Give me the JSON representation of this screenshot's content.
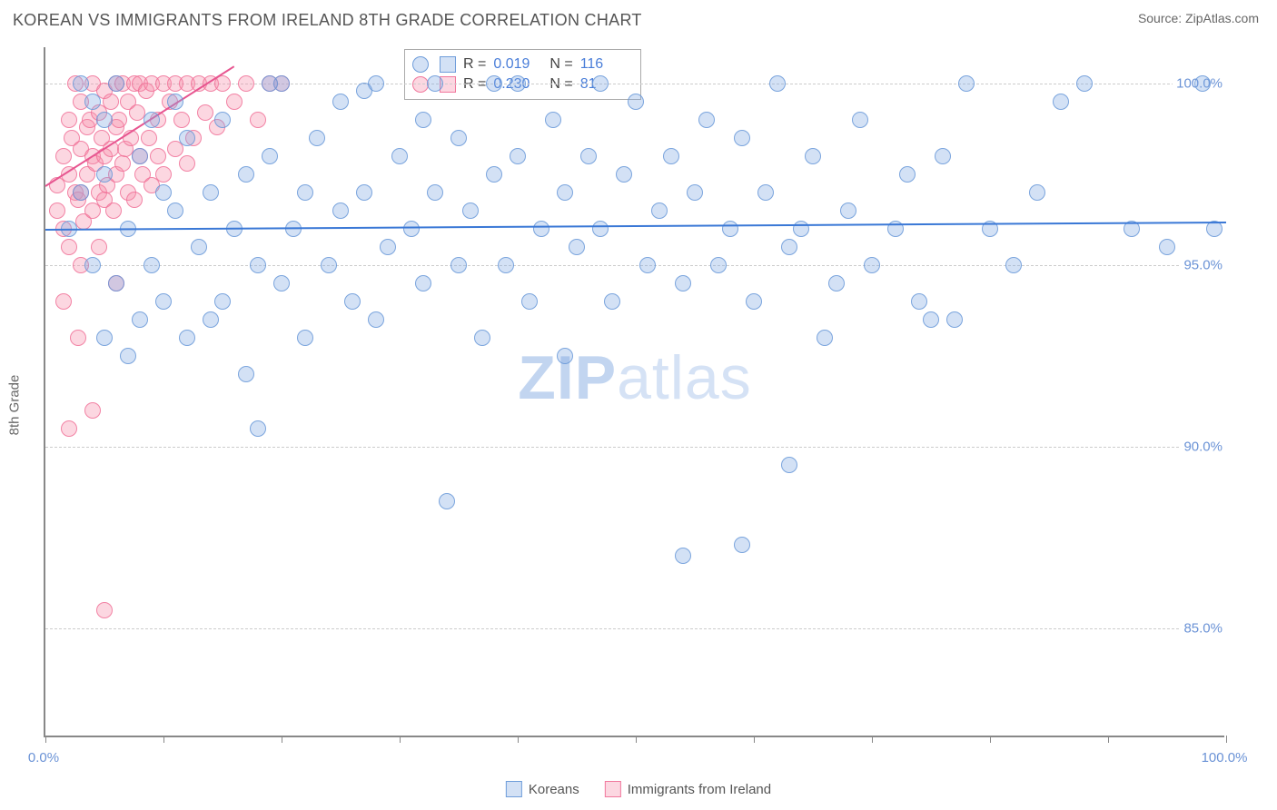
{
  "title": "KOREAN VS IMMIGRANTS FROM IRELAND 8TH GRADE CORRELATION CHART",
  "source_label": "Source: ZipAtlas.com",
  "ylabel": "8th Grade",
  "watermark_a": "ZIP",
  "watermark_b": "atlas",
  "chart": {
    "type": "scatter",
    "xlim": [
      0,
      100
    ],
    "ylim": [
      82,
      101
    ],
    "yticks": [
      85.0,
      90.0,
      95.0,
      100.0
    ],
    "ytick_labels": [
      "85.0%",
      "90.0%",
      "95.0%",
      "100.0%"
    ],
    "xtick_positions": [
      0,
      10,
      20,
      30,
      40,
      50,
      60,
      70,
      80,
      90,
      100
    ],
    "xtick_labels": {
      "0": "0.0%",
      "100": "100.0%"
    },
    "grid_color": "#cccccc",
    "axis_color": "#888888",
    "background_color": "#ffffff",
    "marker_radius": 9,
    "series_blue": {
      "label": "Koreans",
      "fill": "rgba(130,170,225,0.35)",
      "stroke": "rgba(100,150,215,0.8)",
      "R": "0.019",
      "N": "116",
      "trend": {
        "x1": 0,
        "y1": 96.0,
        "x2": 100,
        "y2": 96.2,
        "color": "#3a78d6",
        "width": 2
      },
      "points": [
        [
          2,
          96
        ],
        [
          3,
          97
        ],
        [
          4,
          95
        ],
        [
          4,
          99.5
        ],
        [
          5,
          93
        ],
        [
          5,
          97.5
        ],
        [
          6,
          94.5
        ],
        [
          6,
          100
        ],
        [
          7,
          92.5
        ],
        [
          7,
          96
        ],
        [
          8,
          98
        ],
        [
          8,
          93.5
        ],
        [
          9,
          95
        ],
        [
          9,
          99
        ],
        [
          10,
          94
        ],
        [
          10,
          97
        ],
        [
          11,
          96.5
        ],
        [
          12,
          93
        ],
        [
          12,
          98.5
        ],
        [
          13,
          95.5
        ],
        [
          14,
          97
        ],
        [
          14,
          93.5
        ],
        [
          15,
          99
        ],
        [
          15,
          94
        ],
        [
          16,
          96
        ],
        [
          17,
          97.5
        ],
        [
          17,
          92
        ],
        [
          18,
          95
        ],
        [
          18,
          90.5
        ],
        [
          19,
          98
        ],
        [
          20,
          94.5
        ],
        [
          20,
          100
        ],
        [
          21,
          96
        ],
        [
          22,
          93
        ],
        [
          22,
          97
        ],
        [
          23,
          98.5
        ],
        [
          24,
          95
        ],
        [
          25,
          96.5
        ],
        [
          25,
          99.5
        ],
        [
          26,
          94
        ],
        [
          27,
          97
        ],
        [
          28,
          93.5
        ],
        [
          28,
          100
        ],
        [
          29,
          95.5
        ],
        [
          30,
          98
        ],
        [
          31,
          96
        ],
        [
          32,
          94.5
        ],
        [
          32,
          99
        ],
        [
          33,
          97
        ],
        [
          34,
          88.5
        ],
        [
          35,
          95
        ],
        [
          35,
          98.5
        ],
        [
          36,
          96.5
        ],
        [
          37,
          93
        ],
        [
          38,
          97.5
        ],
        [
          38,
          100
        ],
        [
          39,
          95
        ],
        [
          40,
          98
        ],
        [
          41,
          94
        ],
        [
          42,
          96
        ],
        [
          43,
          99
        ],
        [
          44,
          97
        ],
        [
          44,
          92.5
        ],
        [
          45,
          95.5
        ],
        [
          46,
          98
        ],
        [
          47,
          96
        ],
        [
          47,
          100
        ],
        [
          48,
          94
        ],
        [
          49,
          97.5
        ],
        [
          50,
          99.5
        ],
        [
          51,
          95
        ],
        [
          52,
          96.5
        ],
        [
          53,
          98
        ],
        [
          54,
          94.5
        ],
        [
          54,
          87
        ],
        [
          55,
          97
        ],
        [
          56,
          99
        ],
        [
          57,
          95
        ],
        [
          58,
          96
        ],
        [
          59,
          98.5
        ],
        [
          59,
          87.3
        ],
        [
          60,
          94
        ],
        [
          61,
          97
        ],
        [
          62,
          100
        ],
        [
          63,
          95.5
        ],
        [
          63,
          89.5
        ],
        [
          64,
          96
        ],
        [
          65,
          98
        ],
        [
          66,
          93
        ],
        [
          67,
          94.5
        ],
        [
          68,
          96.5
        ],
        [
          69,
          99
        ],
        [
          70,
          95
        ],
        [
          72,
          96
        ],
        [
          73,
          97.5
        ],
        [
          74,
          94
        ],
        [
          75,
          93.5
        ],
        [
          76,
          98
        ],
        [
          77,
          93.5
        ],
        [
          78,
          100
        ],
        [
          80,
          96
        ],
        [
          82,
          95
        ],
        [
          84,
          97
        ],
        [
          86,
          99.5
        ],
        [
          88,
          100
        ],
        [
          92,
          96
        ],
        [
          95,
          95.5
        ],
        [
          98,
          100
        ],
        [
          99,
          96
        ],
        [
          3,
          100
        ],
        [
          5,
          99
        ],
        [
          11,
          99.5
        ],
        [
          19,
          100
        ],
        [
          27,
          99.8
        ],
        [
          33,
          100
        ],
        [
          40,
          100
        ]
      ]
    },
    "series_pink": {
      "label": "Immigrants from Ireland",
      "fill": "rgba(245,140,170,0.35)",
      "stroke": "rgba(240,110,150,0.8)",
      "R": "0.230",
      "N": "81",
      "trend": {
        "x1": 0,
        "y1": 97.2,
        "x2": 16,
        "y2": 100.5,
        "color": "#e75590",
        "width": 2
      },
      "points": [
        [
          1,
          96.5
        ],
        [
          1,
          97.2
        ],
        [
          1.5,
          98
        ],
        [
          1.5,
          96
        ],
        [
          2,
          97.5
        ],
        [
          2,
          99
        ],
        [
          2,
          95.5
        ],
        [
          2.2,
          98.5
        ],
        [
          2.5,
          97
        ],
        [
          2.5,
          100
        ],
        [
          2.8,
          96.8
        ],
        [
          3,
          98.2
        ],
        [
          3,
          99.5
        ],
        [
          3,
          97
        ],
        [
          3.2,
          96.2
        ],
        [
          3.5,
          98.8
        ],
        [
          3.5,
          97.5
        ],
        [
          3.8,
          99
        ],
        [
          4,
          98
        ],
        [
          4,
          100
        ],
        [
          4,
          96.5
        ],
        [
          4.2,
          97.8
        ],
        [
          4.5,
          99.2
        ],
        [
          4.5,
          97
        ],
        [
          4.8,
          98.5
        ],
        [
          5,
          99.8
        ],
        [
          5,
          96.8
        ],
        [
          5,
          98
        ],
        [
          5.2,
          97.2
        ],
        [
          5.5,
          99.5
        ],
        [
          5.5,
          98.2
        ],
        [
          5.8,
          96.5
        ],
        [
          6,
          100
        ],
        [
          6,
          98.8
        ],
        [
          6,
          97.5
        ],
        [
          6.2,
          99
        ],
        [
          6.5,
          97.8
        ],
        [
          6.5,
          100
        ],
        [
          6.8,
          98.2
        ],
        [
          7,
          99.5
        ],
        [
          7,
          97
        ],
        [
          7.2,
          98.5
        ],
        [
          7.5,
          100
        ],
        [
          7.5,
          96.8
        ],
        [
          7.8,
          99.2
        ],
        [
          8,
          98
        ],
        [
          8,
          100
        ],
        [
          8.2,
          97.5
        ],
        [
          8.5,
          99.8
        ],
        [
          8.8,
          98.5
        ],
        [
          9,
          100
        ],
        [
          9,
          97.2
        ],
        [
          9.5,
          99
        ],
        [
          9.5,
          98
        ],
        [
          10,
          100
        ],
        [
          10,
          97.5
        ],
        [
          10.5,
          99.5
        ],
        [
          11,
          98.2
        ],
        [
          11,
          100
        ],
        [
          11.5,
          99
        ],
        [
          12,
          97.8
        ],
        [
          12,
          100
        ],
        [
          12.5,
          98.5
        ],
        [
          13,
          100
        ],
        [
          13.5,
          99.2
        ],
        [
          14,
          100
        ],
        [
          14.5,
          98.8
        ],
        [
          15,
          100
        ],
        [
          16,
          99.5
        ],
        [
          17,
          100
        ],
        [
          18,
          99
        ],
        [
          19,
          100
        ],
        [
          20,
          100
        ],
        [
          2,
          90.5
        ],
        [
          3,
          95
        ],
        [
          4,
          91
        ],
        [
          5,
          85.5
        ],
        [
          1.5,
          94
        ],
        [
          2.8,
          93
        ],
        [
          6,
          94.5
        ],
        [
          4.5,
          95.5
        ]
      ]
    }
  },
  "stats_labels": {
    "R": "R =",
    "N": "N ="
  },
  "legend": {
    "blue": "Koreans",
    "pink": "Immigrants from Ireland"
  }
}
